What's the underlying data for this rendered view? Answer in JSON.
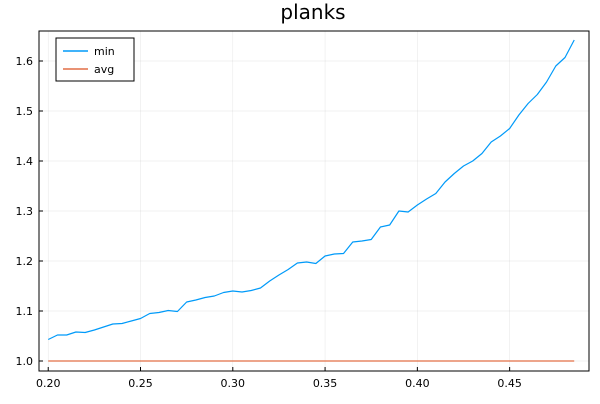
{
  "chart_data": {
    "type": "line",
    "title": "planks",
    "xlabel": "",
    "ylabel": "",
    "xlim": [
      0.195,
      0.493
    ],
    "ylim": [
      0.98,
      1.66
    ],
    "xticks": [
      0.2,
      0.25,
      0.3,
      0.35,
      0.4,
      0.45
    ],
    "xtick_labels": [
      "0.20",
      "0.25",
      "0.30",
      "0.35",
      "0.40",
      "0.45"
    ],
    "yticks": [
      1.0,
      1.1,
      1.2,
      1.3,
      1.4,
      1.5,
      1.6
    ],
    "ytick_labels": [
      "1.0",
      "1.1",
      "1.2",
      "1.3",
      "1.4",
      "1.5",
      "1.6"
    ],
    "grid": true,
    "legend_position": "top-left",
    "x": [
      0.2,
      0.205,
      0.21,
      0.215,
      0.22,
      0.225,
      0.23,
      0.235,
      0.24,
      0.245,
      0.25,
      0.255,
      0.26,
      0.265,
      0.27,
      0.275,
      0.28,
      0.285,
      0.29,
      0.295,
      0.3,
      0.305,
      0.31,
      0.315,
      0.32,
      0.325,
      0.33,
      0.335,
      0.34,
      0.345,
      0.35,
      0.355,
      0.36,
      0.365,
      0.37,
      0.375,
      0.38,
      0.385,
      0.39,
      0.395,
      0.4,
      0.405,
      0.41,
      0.415,
      0.42,
      0.425,
      0.43,
      0.435,
      0.44,
      0.445,
      0.45,
      0.455,
      0.46,
      0.465,
      0.47,
      0.475,
      0.48,
      0.485
    ],
    "series": [
      {
        "name": "min",
        "color": "#009af9",
        "values": [
          1.043,
          1.052,
          1.052,
          1.058,
          1.057,
          1.062,
          1.068,
          1.074,
          1.075,
          1.08,
          1.085,
          1.095,
          1.097,
          1.101,
          1.099,
          1.118,
          1.122,
          1.127,
          1.13,
          1.137,
          1.14,
          1.138,
          1.141,
          1.146,
          1.16,
          1.172,
          1.183,
          1.196,
          1.198,
          1.195,
          1.21,
          1.214,
          1.215,
          1.238,
          1.24,
          1.243,
          1.268,
          1.272,
          1.3,
          1.298,
          1.312,
          1.324,
          1.335,
          1.358,
          1.375,
          1.39,
          1.4,
          1.415,
          1.438,
          1.45,
          1.465,
          1.492,
          1.515,
          1.533,
          1.558,
          1.59,
          1.607,
          1.642
        ]
      },
      {
        "name": "avg",
        "color": "#e26f46",
        "values": [
          1.0,
          1.0,
          1.0,
          1.0,
          1.0,
          1.0,
          1.0,
          1.0,
          1.0,
          1.0,
          1.0,
          1.0,
          1.0,
          1.0,
          1.0,
          1.0,
          1.0,
          1.0,
          1.0,
          1.0,
          1.0,
          1.0,
          1.0,
          1.0,
          1.0,
          1.0,
          1.0,
          1.0,
          1.0,
          1.0,
          1.0,
          1.0,
          1.0,
          1.0,
          1.0,
          1.0,
          1.0,
          1.0,
          1.0,
          1.0,
          1.0,
          1.0,
          1.0,
          1.0,
          1.0,
          1.0,
          1.0,
          1.0,
          1.0,
          1.0,
          1.0,
          1.0,
          1.0,
          1.0,
          1.0,
          1.0,
          1.0,
          1.0
        ]
      }
    ]
  }
}
